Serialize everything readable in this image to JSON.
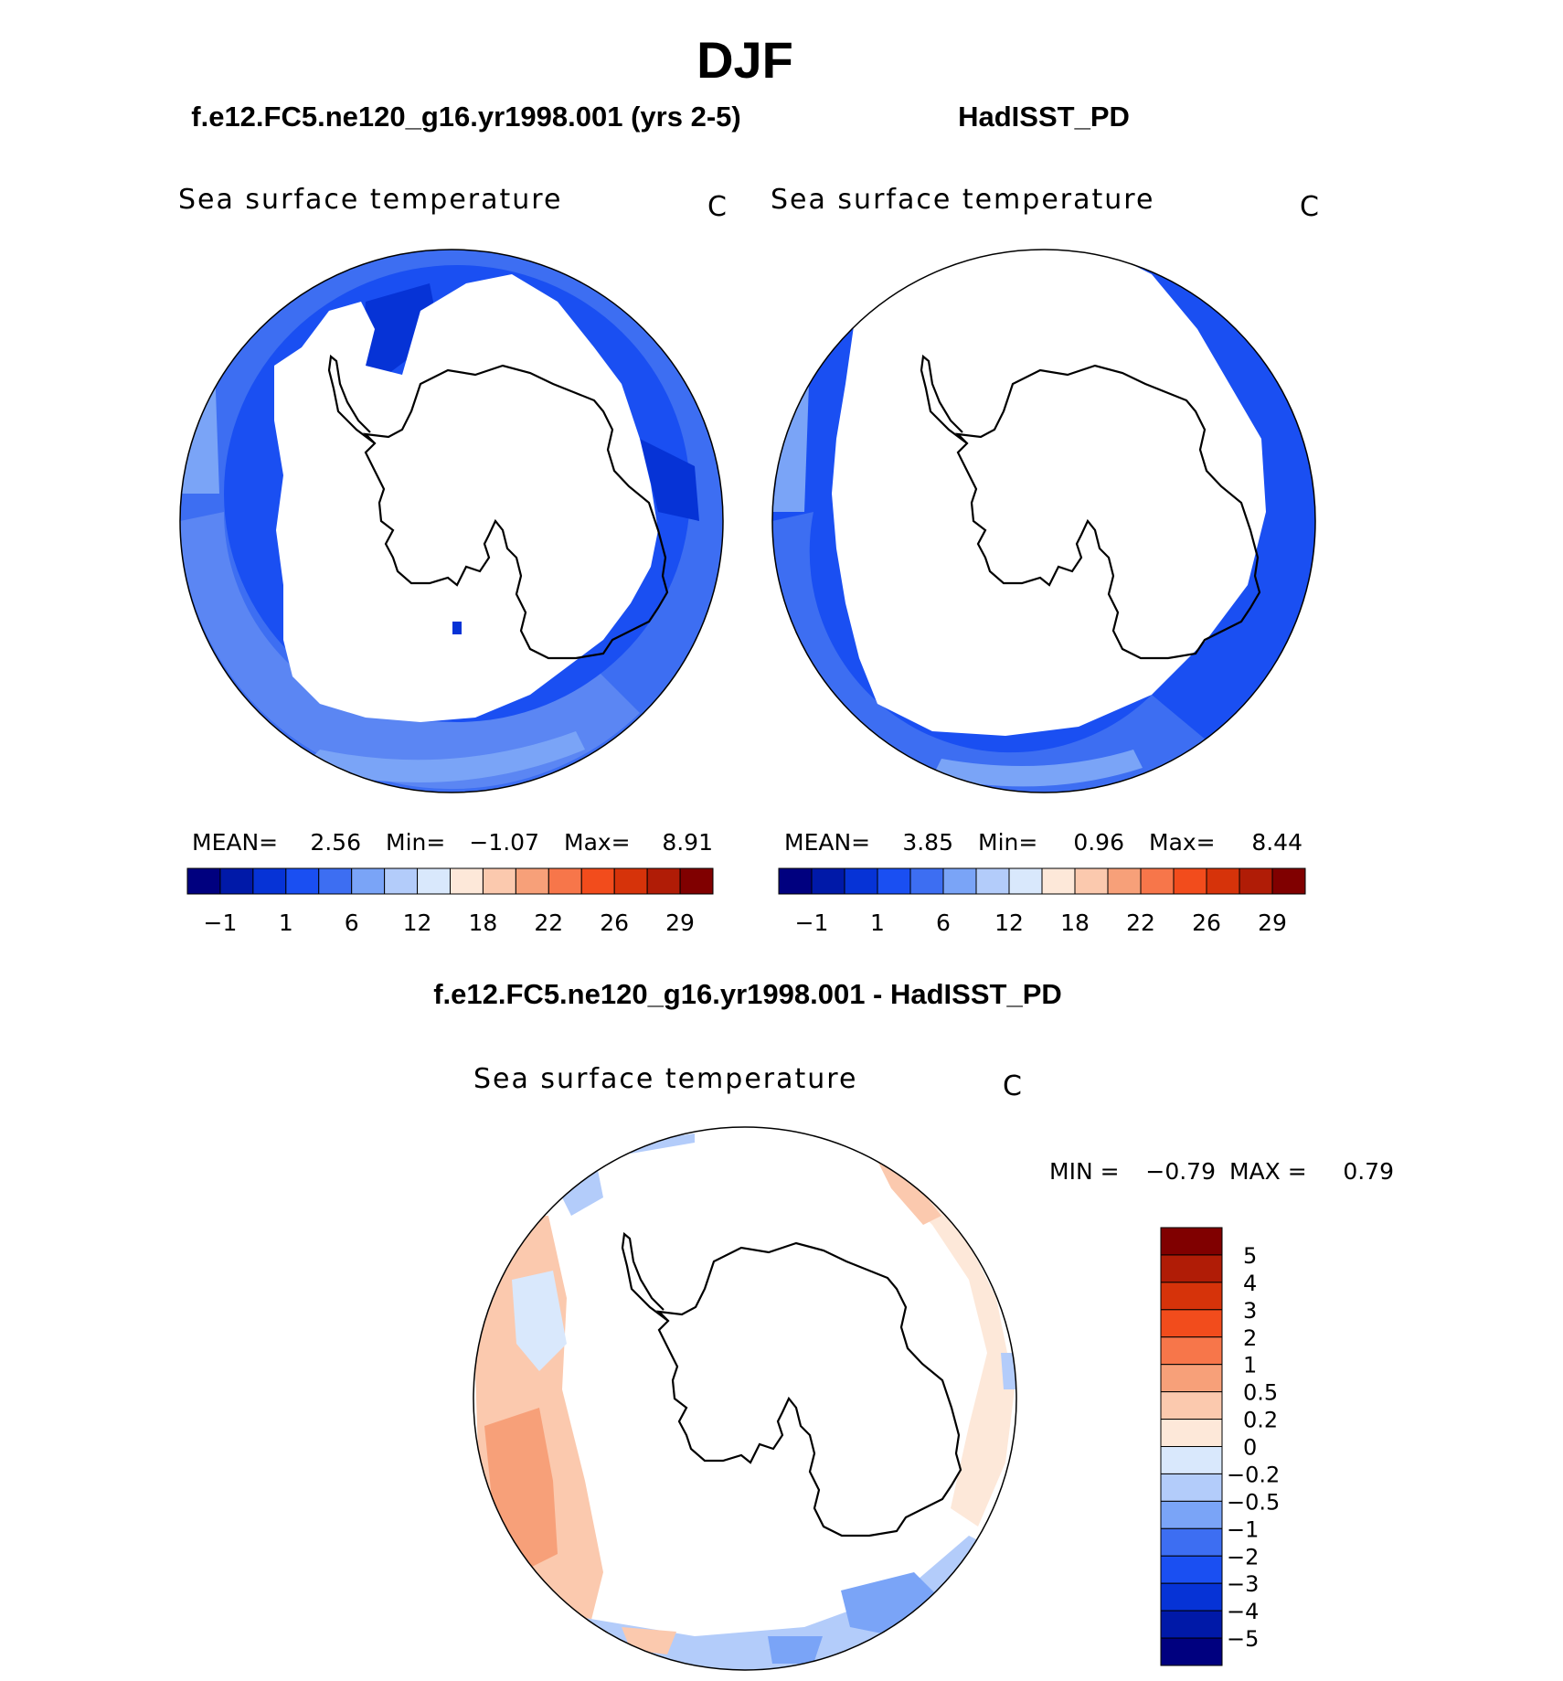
{
  "figure": {
    "title": "DJF"
  },
  "colors": {
    "abs_scale": [
      "#00007f",
      "#0019a8",
      "#0633d6",
      "#1a4ff2",
      "#3d6ef2",
      "#7aa4f7",
      "#b3ccfa",
      "#d9e8fc",
      "#fde8d9",
      "#fbc9ae",
      "#f7a079",
      "#f7764a",
      "#f24c1c",
      "#d6330a",
      "#b01c06",
      "#800000"
    ],
    "diff_scale": [
      "#00007f",
      "#0019a8",
      "#0633d6",
      "#1a4ff2",
      "#3d6ef2",
      "#7aa4f7",
      "#b3ccfa",
      "#d9e8fc",
      "#fde8d9",
      "#fbc9ae",
      "#f7a079",
      "#f7764a",
      "#f24c1c",
      "#d6330a",
      "#b01c06",
      "#800000"
    ]
  },
  "chart_data": [
    {
      "type": "heatmap",
      "projection": "south-polar-stereographic",
      "title": "f.e12.FC5.ne120_g16.yr1998.001 (yrs 2-5)",
      "variable": "Sea surface temperature",
      "units": "C",
      "stats": {
        "mean_label": "MEAN=",
        "mean": "2.56",
        "min_label": "Min=",
        "min": "−1.07",
        "max_label": "Max=",
        "max": "8.91"
      },
      "colorbar_ticks": [
        "−1",
        "1",
        "6",
        "12",
        "18",
        "22",
        "26",
        "29"
      ],
      "value_range": [
        -1.07,
        8.91
      ]
    },
    {
      "type": "heatmap",
      "projection": "south-polar-stereographic",
      "title": "HadISST_PD",
      "variable": "Sea surface temperature",
      "units": "C",
      "stats": {
        "mean_label": "MEAN=",
        "mean": "3.85",
        "min_label": "Min=",
        "min": "0.96",
        "max_label": "Max=",
        "max": "8.44"
      },
      "colorbar_ticks": [
        "−1",
        "1",
        "6",
        "12",
        "18",
        "22",
        "26",
        "29"
      ],
      "value_range": [
        0.96,
        8.44
      ]
    },
    {
      "type": "heatmap",
      "projection": "south-polar-stereographic",
      "title": "f.e12.FC5.ne120_g16.yr1998.001 - HadISST_PD",
      "variable": "Sea surface temperature",
      "units": "C",
      "stats": {
        "min_label": "MIN =",
        "min": "−0.79",
        "max_label": "MAX =",
        "max": "0.79"
      },
      "colorbar_ticks": [
        "5",
        "4",
        "3",
        "2",
        "1",
        "0.5",
        "0.2",
        "0",
        "−0.2",
        "−0.5",
        "−1",
        "−2",
        "−3",
        "−4",
        "−5"
      ],
      "value_range": [
        -0.79,
        0.79
      ]
    }
  ]
}
